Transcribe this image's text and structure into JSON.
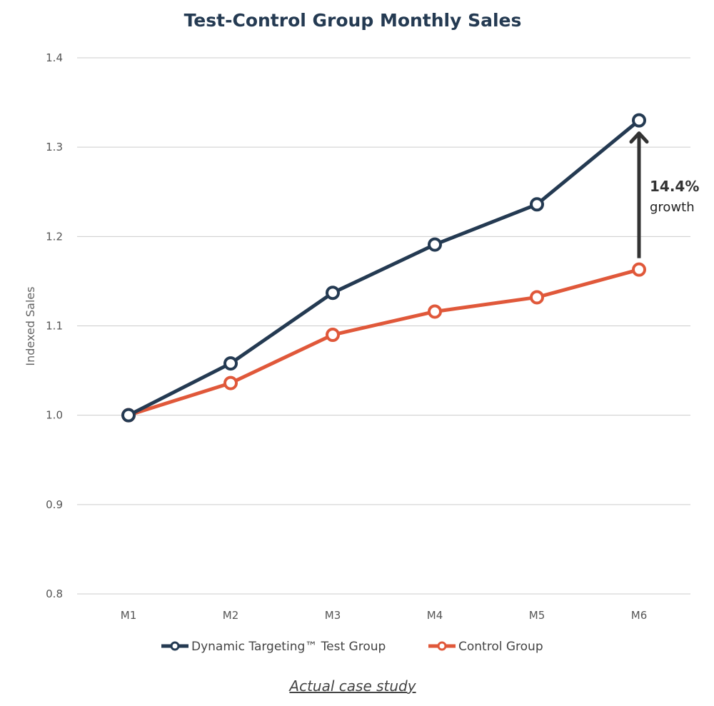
{
  "chart_data": {
    "type": "line",
    "title": "Test-Control Group Monthly Sales",
    "xlabel": "",
    "ylabel": "Indexed Sales",
    "categories": [
      "M1",
      "M2",
      "M3",
      "M4",
      "M5",
      "M6"
    ],
    "ylim": [
      0.8,
      1.4
    ],
    "yticks": [
      "0.8",
      "0.9",
      "1.0",
      "1.1",
      "1.2",
      "1.3",
      "1.4"
    ],
    "grid": "horizontal",
    "legend_position": "bottom",
    "series": [
      {
        "name": "Dynamic Targeting™ Test Group",
        "color": "#243a52",
        "values": [
          1.0,
          1.058,
          1.137,
          1.191,
          1.236,
          1.33
        ]
      },
      {
        "name": "Control Group",
        "color": "#e0583a",
        "values": [
          1.0,
          1.036,
          1.09,
          1.116,
          1.132,
          1.163
        ]
      }
    ],
    "annotation": {
      "value": "14.4%",
      "label": "growth",
      "arrow_from_series": 1,
      "arrow_to_series": 0,
      "at_category": "M6",
      "color": "#333333"
    }
  },
  "caption": "Actual case study"
}
